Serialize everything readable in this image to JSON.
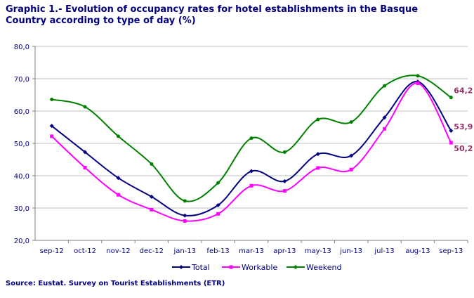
{
  "chart_data": {
    "type": "line",
    "title": "Graphic 1.- Evolution of occupancy rates for hotel establishments in the Basque Country according to type of day (%)",
    "source": "Source: Eustat. Survey on Tourist Establishments (ETR)",
    "categories": [
      "sep-12",
      "oct-12",
      "nov-12",
      "dec-12",
      "jan-13",
      "feb-13",
      "mar-13",
      "apr-13",
      "may-13",
      "jun-13",
      "jul-13",
      "aug-13",
      "sep-13"
    ],
    "ylim": [
      20,
      80
    ],
    "yticks": [
      "20,0",
      "30,0",
      "40,0",
      "50,0",
      "60,0",
      "70,0",
      "80,0"
    ],
    "grid": true,
    "legend": "bottom",
    "series": [
      {
        "name": "Total",
        "color": "#000080",
        "marker": "diamond",
        "values": [
          55.4,
          47.3,
          39.3,
          33.5,
          27.7,
          30.9,
          41.4,
          38.3,
          46.7,
          46.2,
          58.0,
          69.1,
          53.9
        ],
        "end_label": "53,9"
      },
      {
        "name": "Workable",
        "color": "#ff00ff",
        "marker": "square",
        "values": [
          52.2,
          42.5,
          34.1,
          29.5,
          26.0,
          28.2,
          36.9,
          35.3,
          42.4,
          41.9,
          54.5,
          68.6,
          50.2
        ],
        "end_label": "50,2"
      },
      {
        "name": "Weekend",
        "color": "#008000",
        "marker": "circle",
        "values": [
          63.6,
          61.3,
          52.2,
          43.6,
          32.2,
          37.8,
          51.6,
          47.3,
          57.4,
          56.6,
          67.8,
          70.9,
          64.2
        ],
        "end_label": "64,2"
      }
    ],
    "end_label_color": "#993366"
  }
}
